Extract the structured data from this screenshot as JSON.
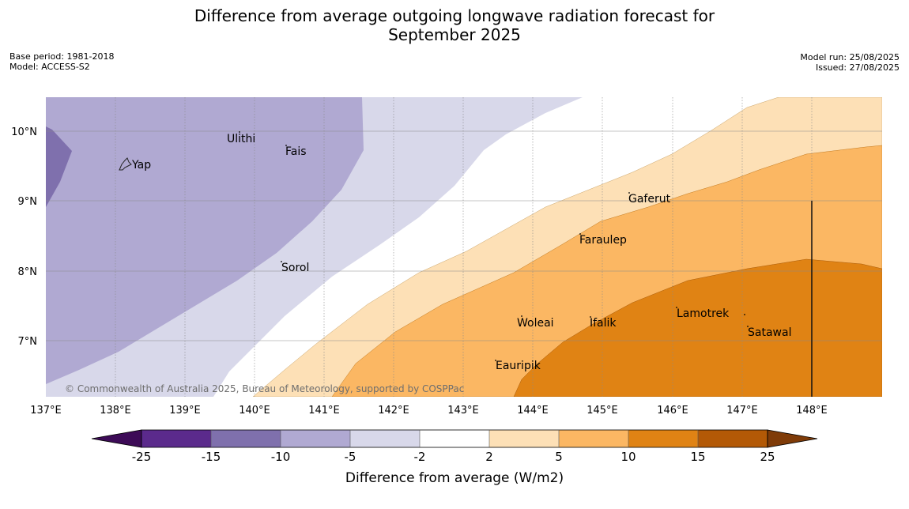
{
  "title_line1": "Difference from average outgoing longwave radiation forecast for",
  "title_line2": "September 2025",
  "meta_left": {
    "base_period": "Base period: 1981-2018",
    "model": "Model: ACCESS-S2"
  },
  "meta_right": {
    "model_run": "Model run: 25/08/2025",
    "issued": "Issued: 27/08/2025"
  },
  "copyright": "© Commonwealth of Australia 2025, Bureau of Meteorology, supported by COSPPac",
  "axes": {
    "x_ticks": [
      "137°E",
      "138°E",
      "139°E",
      "140°E",
      "141°E",
      "142°E",
      "143°E",
      "144°E",
      "145°E",
      "146°E",
      "147°E",
      "148°E"
    ],
    "y_ticks": [
      "10°N",
      "9°N",
      "8°N",
      "7°N"
    ]
  },
  "places": [
    {
      "name": "Ulithi"
    },
    {
      "name": "Fais"
    },
    {
      "name": "Yap"
    },
    {
      "name": "Gaferut"
    },
    {
      "name": "Faraulep"
    },
    {
      "name": "Sorol"
    },
    {
      "name": "Lamotrek"
    },
    {
      "name": "Woleai"
    },
    {
      "name": "Ifalik"
    },
    {
      "name": "Satawal"
    },
    {
      "name": "Eauripik"
    }
  ],
  "colorbar": {
    "label": "Difference from average (W/m2)",
    "ticks": [
      "-25",
      "-15",
      "-10",
      "-5",
      "-2",
      "2",
      "5",
      "10",
      "15",
      "25"
    ],
    "colors": [
      "#3d0b57",
      "#5b2a8c",
      "#7f70ad",
      "#b0a9d2",
      "#d8d8ea",
      "#ffffff",
      "#fde0b6",
      "#fbb763",
      "#e08314",
      "#b35906",
      "#7f3b08"
    ]
  }
}
